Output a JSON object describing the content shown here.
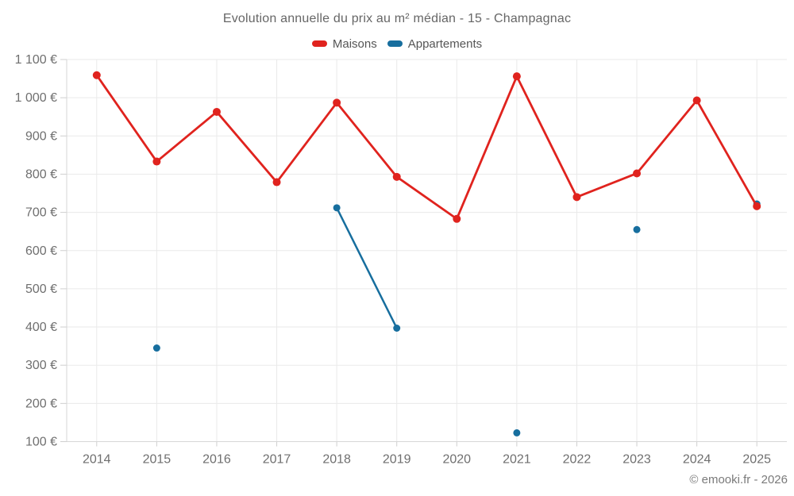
{
  "header": {
    "title": "Evolution annuelle du prix au m² médian - 15 - Champagnac"
  },
  "footer": {
    "credit": "© emooki.fr - 2026"
  },
  "chart_data": {
    "type": "line",
    "title": "Evolution annuelle du prix au m² médian - 15 - Champagnac",
    "categories": [
      2014,
      2015,
      2016,
      2017,
      2018,
      2019,
      2020,
      2021,
      2022,
      2023,
      2024,
      2025
    ],
    "series": [
      {
        "name": "Maisons",
        "color": "#e0231e",
        "marker_radius": 5,
        "line_width": 2.8,
        "values": [
          1059,
          833,
          963,
          779,
          987,
          793,
          683,
          1056,
          740,
          802,
          993,
          716
        ]
      },
      {
        "name": "Appartements",
        "color": "#176e9e",
        "marker_radius": 4.5,
        "line_width": 2.5,
        "values": [
          null,
          345,
          null,
          null,
          712,
          397,
          null,
          123,
          null,
          655,
          null,
          722
        ]
      }
    ],
    "xlabel": "",
    "ylabel": "",
    "ylim": [
      100,
      1100
    ],
    "ytick_step": 100,
    "ytick_suffix": " €",
    "grid": true,
    "legend_position": "top",
    "axis_color": "#d6d6d6",
    "grid_color": "#eaeaea",
    "tick_color": "#cfcfcf",
    "label_color": "#6f6f6f"
  }
}
